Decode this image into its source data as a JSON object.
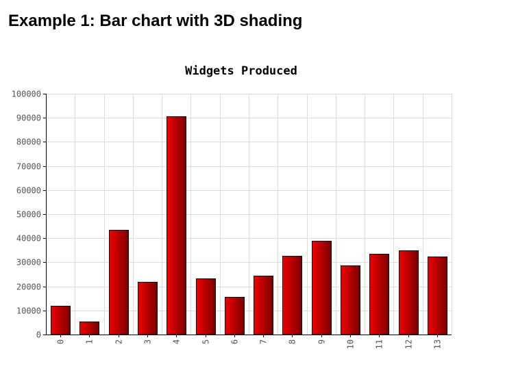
{
  "page": {
    "heading": "Example 1: Bar chart with 3D shading"
  },
  "colors": {
    "bar_light": "#f00000",
    "bar_dark": "#7a0000",
    "bar_outline": "#000000",
    "grid": "#dddddd",
    "axis": "#000000",
    "tick_text": "#555555"
  },
  "chart_data": {
    "type": "bar",
    "title": "Widgets Produced",
    "xlabel": "",
    "ylabel": "",
    "categories": [
      "0",
      "1",
      "2",
      "3",
      "4",
      "5",
      "6",
      "7",
      "8",
      "9",
      "10",
      "11",
      "12",
      "13"
    ],
    "values": [
      12000,
      5500,
      43500,
      22000,
      90500,
      23300,
      15500,
      24500,
      32700,
      38800,
      28800,
      33400,
      35000,
      32300
    ],
    "ylim": [
      0,
      100000
    ],
    "yticks": [
      "0",
      "10000",
      "20000",
      "30000",
      "40000",
      "50000",
      "60000",
      "70000",
      "80000",
      "90000",
      "100000"
    ],
    "grid": true,
    "shading": "3d-gradient"
  }
}
